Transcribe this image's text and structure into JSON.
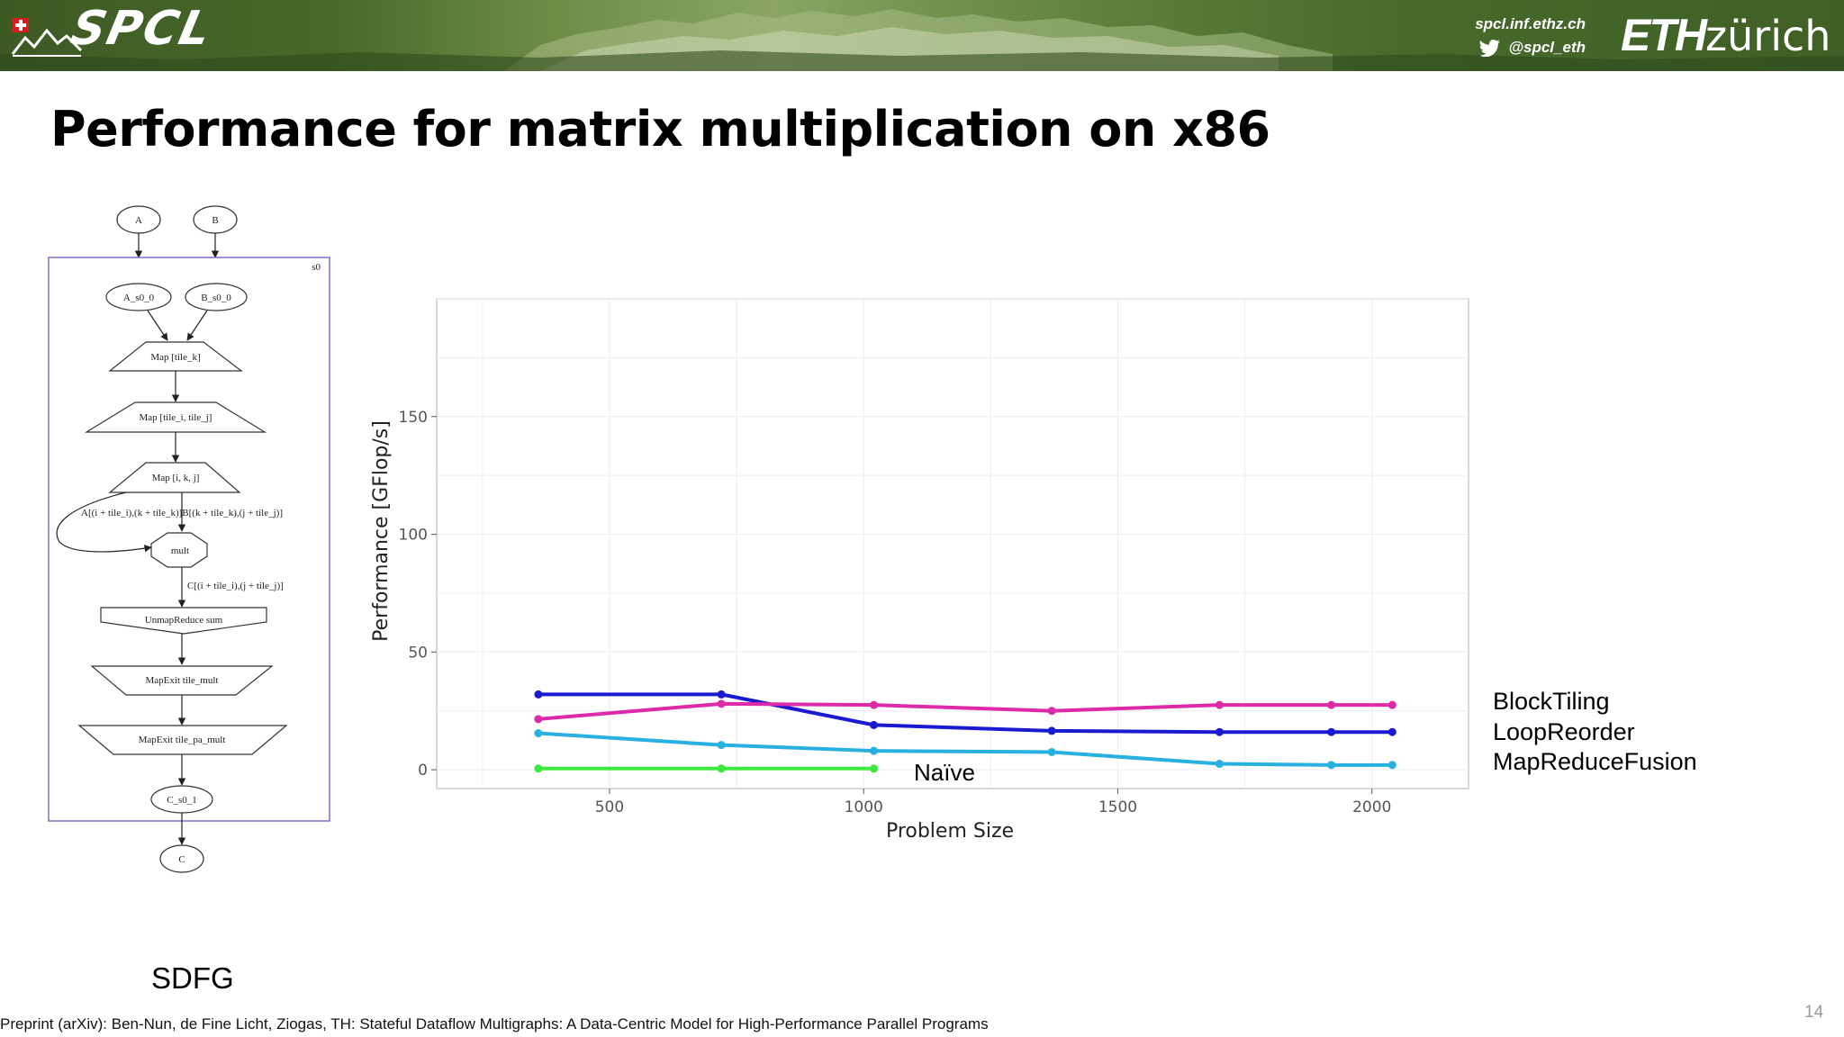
{
  "header": {
    "logo_text": "SPCL",
    "website": "spcl.inf.ethz.ch",
    "twitter": "@spcl_eth",
    "institution_bold": "ETH",
    "institution_light": "zürich"
  },
  "slide": {
    "title": "Performance for matrix multiplication on x86",
    "sdfg_label": "SDFG",
    "naive_label": "Naïve",
    "legend": [
      "BlockTiling",
      "LoopReorder",
      "MapReduceFusion"
    ],
    "footer": "Preprint (arXiv): Ben-Nun, de Fine Licht, Ziogas, TH: Stateful Dataflow Multigraphs: A Data-Centric Model for High-Performance Parallel Programs",
    "page_number": "14"
  },
  "sdfg": {
    "inputs": [
      "A",
      "B"
    ],
    "state_name": "s0",
    "access_nodes": [
      "A_s0_0",
      "B_s0_0"
    ],
    "map_entries": [
      "Map [tile_k]",
      "Map [tile_i, tile_j]",
      "Map [i, k, j]"
    ],
    "memlet_in": "A[(i + tile_i),(k + tile_k)]B[(k + tile_k),(j + tile_j)]",
    "tasklet": "mult",
    "memlet_out": "C[(i + tile_i),(j + tile_j)]",
    "map_exits": [
      "UnmapReduce sum",
      "MapExit tile_mult",
      "MapExit tile_pa_mult"
    ],
    "output_access": "C_s0_1",
    "output": "C"
  },
  "chart_data": {
    "type": "line",
    "xlabel": "Problem Size",
    "ylabel": "Performance [GFlop/s]",
    "xlim": [
      160,
      2190
    ],
    "ylim": [
      -8,
      200
    ],
    "xticks": [
      500,
      1000,
      1500,
      2000
    ],
    "yticks": [
      0,
      50,
      100,
      150
    ],
    "grid": true,
    "colors": {
      "BlockTiling": "#1a1ad0",
      "LoopReorder": "#dd2aa8",
      "MapReduceFusion": "#28b0e0",
      "Naive": "#3ee83e"
    },
    "series": [
      {
        "name": "BlockTiling",
        "color": "#1a1ad0",
        "x": [
          360,
          720,
          1020,
          1370,
          1700,
          1920,
          2040
        ],
        "y": [
          32,
          32,
          19,
          16.5,
          16,
          16,
          16
        ]
      },
      {
        "name": "LoopReorder",
        "color": "#dd2aa8",
        "x": [
          360,
          720,
          1020,
          1370,
          1700,
          1920,
          2040
        ],
        "y": [
          21.5,
          28,
          27.5,
          25,
          27.5,
          27.5,
          27.5
        ]
      },
      {
        "name": "MapReduceFusion",
        "color": "#28b0e0",
        "x": [
          360,
          720,
          1020,
          1370,
          1700,
          1920,
          2040
        ],
        "y": [
          15.5,
          10.5,
          8,
          7.5,
          2.5,
          2,
          2
        ]
      },
      {
        "name": "Naïve",
        "color": "#3ee83e",
        "x": [
          360,
          720,
          1020
        ],
        "y": [
          0.5,
          0.5,
          0.5
        ]
      }
    ]
  }
}
